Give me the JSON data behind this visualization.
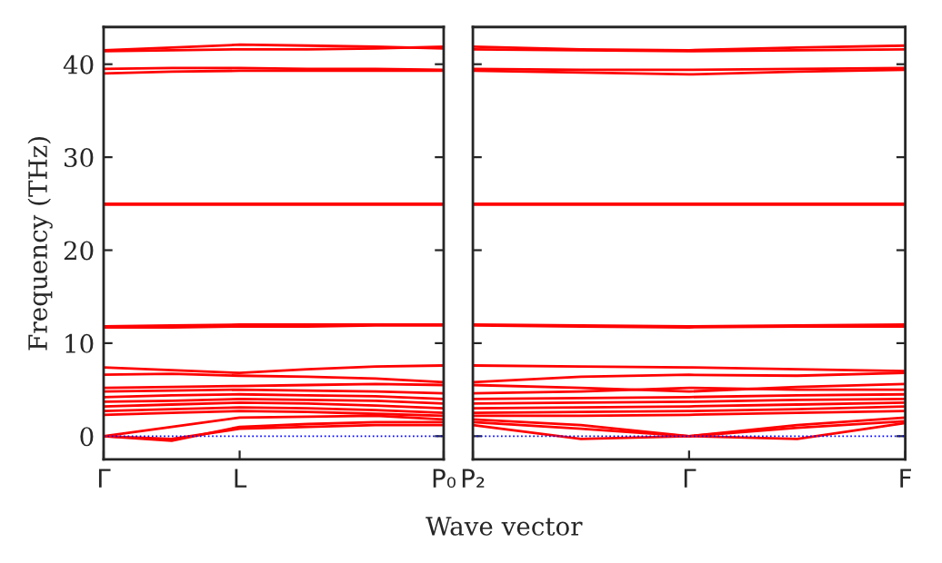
{
  "chart_data": [
    {
      "type": "line",
      "ylabel": "Frequency (THz)",
      "xlabel": "Wave vector",
      "color": "#ff0000",
      "categories": [
        "Γ",
        null,
        "L",
        null,
        null,
        "P₀"
      ],
      "ylim": [
        -2.5,
        44
      ],
      "yticks": [
        0,
        10,
        20,
        30,
        40
      ],
      "ref_lines": [
        {
          "axis": "y",
          "value": 0,
          "color": "#0000ff",
          "line_style": "dotted"
        }
      ],
      "series": [
        {
          "values": [
            41.5,
            41.8,
            42.1,
            42.0,
            41.9,
            41.7
          ]
        },
        {
          "values": [
            41.4,
            41.5,
            41.6,
            41.6,
            41.7,
            41.9
          ]
        },
        {
          "values": [
            39.5,
            39.6,
            39.6,
            39.5,
            39.5,
            39.4
          ]
        },
        {
          "values": [
            39.0,
            39.2,
            39.3,
            39.3,
            39.3,
            39.3
          ]
        },
        {
          "values": [
            25.0,
            25.0,
            25.0,
            25.0,
            25.0,
            25.0
          ]
        },
        {
          "values": [
            24.9,
            24.9,
            24.9,
            24.9,
            24.9,
            24.9
          ]
        },
        {
          "values": [
            11.8,
            11.9,
            12.0,
            12.0,
            12.0,
            12.0
          ]
        },
        {
          "values": [
            11.7,
            11.7,
            11.8,
            11.8,
            11.9,
            11.9
          ]
        },
        {
          "values": [
            7.4,
            7.1,
            6.8,
            7.2,
            7.5,
            7.6
          ]
        },
        {
          "values": [
            6.6,
            6.7,
            6.5,
            6.4,
            6.2,
            5.8
          ]
        },
        {
          "values": [
            5.2,
            5.3,
            5.4,
            5.5,
            5.6,
            5.5
          ]
        },
        {
          "values": [
            4.8,
            4.9,
            5.0,
            4.9,
            4.8,
            4.6
          ]
        },
        {
          "values": [
            4.2,
            4.4,
            4.5,
            4.4,
            4.3,
            4.0
          ]
        },
        {
          "values": [
            3.7,
            3.8,
            4.0,
            3.9,
            3.8,
            3.5
          ]
        },
        {
          "values": [
            3.2,
            3.4,
            3.6,
            3.5,
            3.3,
            3.0
          ]
        },
        {
          "values": [
            2.7,
            2.9,
            3.1,
            3.0,
            2.8,
            2.5
          ]
        },
        {
          "values": [
            2.3,
            2.5,
            2.7,
            2.6,
            2.4,
            2.2
          ]
        },
        {
          "values": [
            0.0,
            1.0,
            2.0,
            2.1,
            2.2,
            1.8
          ]
        },
        {
          "values": [
            0.0,
            -0.5,
            1.0,
            1.3,
            1.5,
            1.5
          ]
        },
        {
          "values": [
            0.0,
            -0.3,
            0.8,
            1.0,
            1.2,
            1.2
          ]
        }
      ]
    },
    {
      "type": "line",
      "color": "#ff0000",
      "tick_labels": "x",
      "categories": [
        "P₂",
        null,
        "Γ",
        null,
        "F"
      ],
      "ylim": [
        -2.5,
        44
      ],
      "yticks": [
        0,
        10,
        20,
        30,
        40
      ],
      "ref_lines": [
        {
          "axis": "y",
          "value": 0,
          "color": "#0000ff",
          "line_style": "dotted"
        }
      ],
      "series": [
        {
          "values": [
            41.9,
            41.6,
            41.5,
            41.8,
            42.0
          ]
        },
        {
          "values": [
            41.6,
            41.5,
            41.4,
            41.5,
            41.6
          ]
        },
        {
          "values": [
            39.5,
            39.4,
            39.4,
            39.5,
            39.6
          ]
        },
        {
          "values": [
            39.3,
            39.1,
            38.9,
            39.2,
            39.4
          ]
        },
        {
          "values": [
            25.0,
            25.0,
            25.0,
            25.0,
            25.0
          ]
        },
        {
          "values": [
            24.9,
            24.9,
            24.9,
            24.9,
            24.9
          ]
        },
        {
          "values": [
            12.0,
            11.9,
            11.8,
            11.9,
            12.0
          ]
        },
        {
          "values": [
            11.9,
            11.8,
            11.7,
            11.8,
            11.8
          ]
        },
        {
          "values": [
            7.6,
            7.5,
            7.4,
            7.2,
            7.0
          ]
        },
        {
          "values": [
            5.8,
            6.4,
            6.6,
            6.5,
            6.8
          ]
        },
        {
          "values": [
            5.5,
            5.2,
            4.8,
            5.3,
            5.6
          ]
        },
        {
          "values": [
            4.6,
            4.8,
            5.2,
            5.0,
            5.0
          ]
        },
        {
          "values": [
            4.0,
            4.1,
            4.2,
            4.4,
            4.5
          ]
        },
        {
          "values": [
            3.5,
            3.6,
            3.7,
            3.9,
            4.0
          ]
        },
        {
          "values": [
            3.0,
            3.1,
            3.2,
            3.4,
            3.6
          ]
        },
        {
          "values": [
            2.5,
            2.6,
            2.7,
            2.9,
            3.2
          ]
        },
        {
          "values": [
            2.2,
            2.2,
            2.3,
            2.5,
            2.7
          ]
        },
        {
          "values": [
            1.8,
            1.2,
            0.0,
            1.2,
            2.0
          ]
        },
        {
          "values": [
            1.5,
            0.8,
            0.0,
            0.9,
            1.6
          ]
        },
        {
          "values": [
            1.2,
            -0.3,
            0.0,
            -0.3,
            1.4
          ]
        }
      ]
    }
  ]
}
